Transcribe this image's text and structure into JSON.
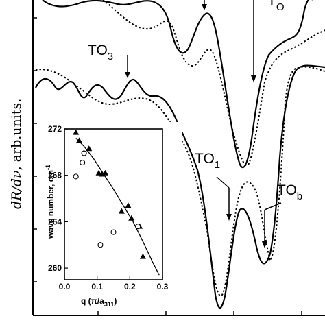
{
  "main_chart": {
    "ylabel_italic": "dR/dν",
    "ylabel_rest": ", arb.units.",
    "annotations": [
      {
        "label": "TO",
        "sub": "3"
      },
      {
        "label": "TO",
        "sub": "1"
      },
      {
        "label": "TO",
        "sub": "b"
      },
      {
        "label": "T",
        "sub": "O"
      }
    ],
    "line_styles": [
      "solid",
      "dotted"
    ]
  },
  "chart_data": [
    {
      "type": "line",
      "title": "",
      "xlabel": "",
      "ylabel": "dR/dν, arb.units.",
      "series": [
        {
          "style": "solid",
          "x": [
            0,
            5,
            10,
            15,
            20,
            25,
            30,
            35,
            40,
            45,
            50,
            55,
            60,
            65,
            70,
            75,
            80,
            85,
            90,
            95,
            100
          ],
          "y": [
            0.8,
            0.86,
            0.82,
            0.88,
            0.79,
            0.84,
            0.7,
            0.72,
            0.5,
            0.62,
            0.74,
            0.55,
            0.12,
            0.4,
            0.3,
            0.7,
            0.72,
            0.45,
            0.2,
            0.34,
            0.1
          ]
        },
        {
          "style": "dotted",
          "x": [
            0,
            5,
            10,
            15,
            20,
            25,
            30,
            35,
            40,
            45,
            50,
            55,
            60,
            65,
            70,
            75,
            80,
            85,
            90,
            95,
            100
          ],
          "y": [
            0.78,
            0.8,
            0.79,
            0.82,
            0.81,
            0.8,
            0.74,
            0.7,
            0.56,
            0.58,
            0.62,
            0.36,
            0.2,
            0.48,
            0.42,
            0.6,
            0.64,
            0.38,
            0.28,
            0.26,
            0.18
          ]
        }
      ]
    },
    {
      "type": "scatter",
      "title": "",
      "xlabel": "q (π/a",
      "xlabel_sub": "311",
      "xlabel_tail": ")",
      "ylabel": "wave number, cm",
      "ylabel_sup": "-1",
      "xlim": [
        0.0,
        0.3
      ],
      "ylim": [
        259,
        272
      ],
      "x_ticks": [
        "0.0",
        "0.1",
        "0.2",
        "0.3"
      ],
      "x_tick_values": [
        0.0,
        0.1,
        0.2,
        0.3
      ],
      "y_ticks": [
        "260",
        "264",
        "268",
        "272"
      ],
      "y_tick_values": [
        260,
        264,
        268,
        272
      ],
      "series": [
        {
          "marker": "filled-triangle",
          "x": [
            0.035,
            0.045,
            0.075,
            0.105,
            0.115,
            0.125,
            0.175,
            0.195,
            0.205,
            0.23,
            0.24
          ],
          "y": [
            271.7,
            271.0,
            270.3,
            268.2,
            268.1,
            268.2,
            264.9,
            265.4,
            264.3,
            263.6,
            261.0
          ]
        },
        {
          "marker": "open-circle",
          "x": [
            0.035,
            0.055,
            0.06,
            0.11,
            0.15,
            0.225
          ],
          "y": [
            267.9,
            269.1,
            269.9,
            262.0,
            263.1,
            263.6
          ]
        },
        {
          "marker": "line",
          "x": [
            0.035,
            0.06,
            0.09,
            0.12,
            0.15,
            0.18,
            0.21,
            0.24,
            0.27,
            0.29
          ],
          "y": [
            271.2,
            270.5,
            269.4,
            268.1,
            266.8,
            265.4,
            264.0,
            262.3,
            260.5,
            259.4
          ]
        }
      ]
    }
  ]
}
